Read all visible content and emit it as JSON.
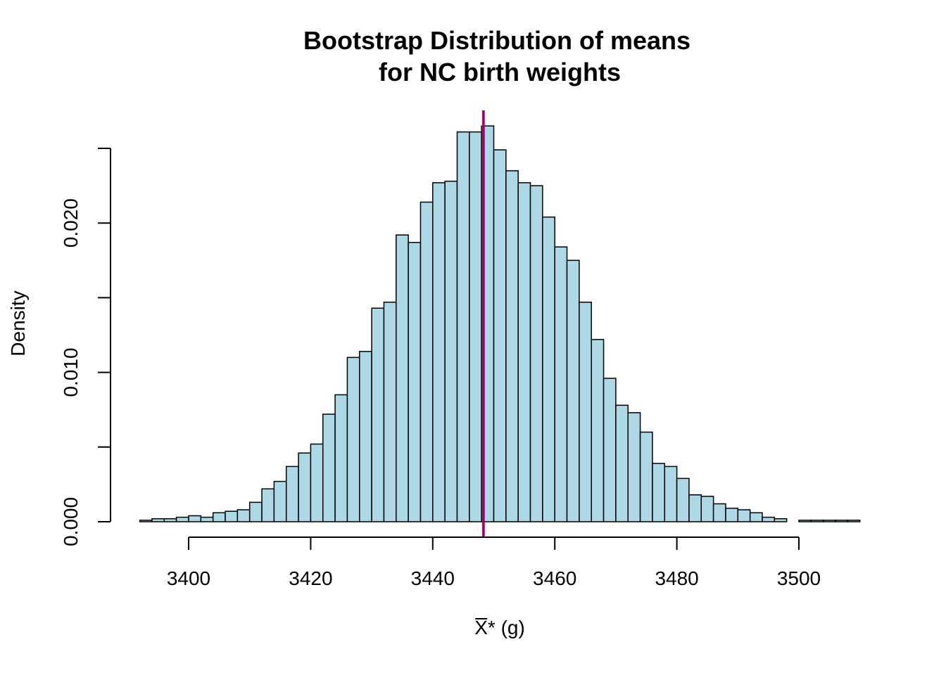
{
  "chart_data": {
    "type": "bar",
    "subtype": "histogram",
    "title": [
      "Bootstrap Distribution of means",
      "for NC birth weights"
    ],
    "xlabel": {
      "symbol": "X",
      "suffix": "* (g)"
    },
    "ylabel": "Density",
    "xlim": [
      3390,
      3510
    ],
    "ylim": [
      0,
      0.025
    ],
    "x_ticks": [
      3400,
      3420,
      3440,
      3460,
      3480,
      3500
    ],
    "x_tick_labels": [
      "3400",
      "3420",
      "3440",
      "3460",
      "3480",
      "3500"
    ],
    "y_ticks": [
      0,
      0.005,
      0.01,
      0.015,
      0.02,
      0.025
    ],
    "y_tick_labels": [
      "0.000",
      "",
      "0.010",
      "",
      "0.020",
      ""
    ],
    "bin_start": 3392,
    "bin_width": 2,
    "values": [
      0.0001,
      0.0002,
      0.0002,
      0.0003,
      0.0004,
      0.0003,
      0.0006,
      0.0007,
      0.0008,
      0.0013,
      0.0022,
      0.0027,
      0.0037,
      0.0046,
      0.0052,
      0.0072,
      0.0085,
      0.011,
      0.0114,
      0.0143,
      0.0147,
      0.0192,
      0.0187,
      0.0214,
      0.0227,
      0.0228,
      0.0261,
      0.0261,
      0.0265,
      0.0249,
      0.0235,
      0.0227,
      0.0225,
      0.0204,
      0.0184,
      0.0175,
      0.0147,
      0.0122,
      0.0096,
      0.0078,
      0.0073,
      0.006,
      0.0039,
      0.0037,
      0.0029,
      0.0018,
      0.0017,
      0.0012,
      0.0009,
      0.0008,
      0.0006,
      0.0003,
      0.0002,
      0.0,
      0.0001,
      0.0001,
      0.0001,
      0.0001,
      0.0001
    ],
    "reference_lines": [
      {
        "x": 3448.3,
        "color": "#ff0000"
      },
      {
        "x": 3448.3,
        "color": "#7700aa"
      }
    ],
    "colors": {
      "bar_fill": "#add8e6",
      "bar_stroke": "#000000"
    },
    "grid": false,
    "legend": "none"
  }
}
